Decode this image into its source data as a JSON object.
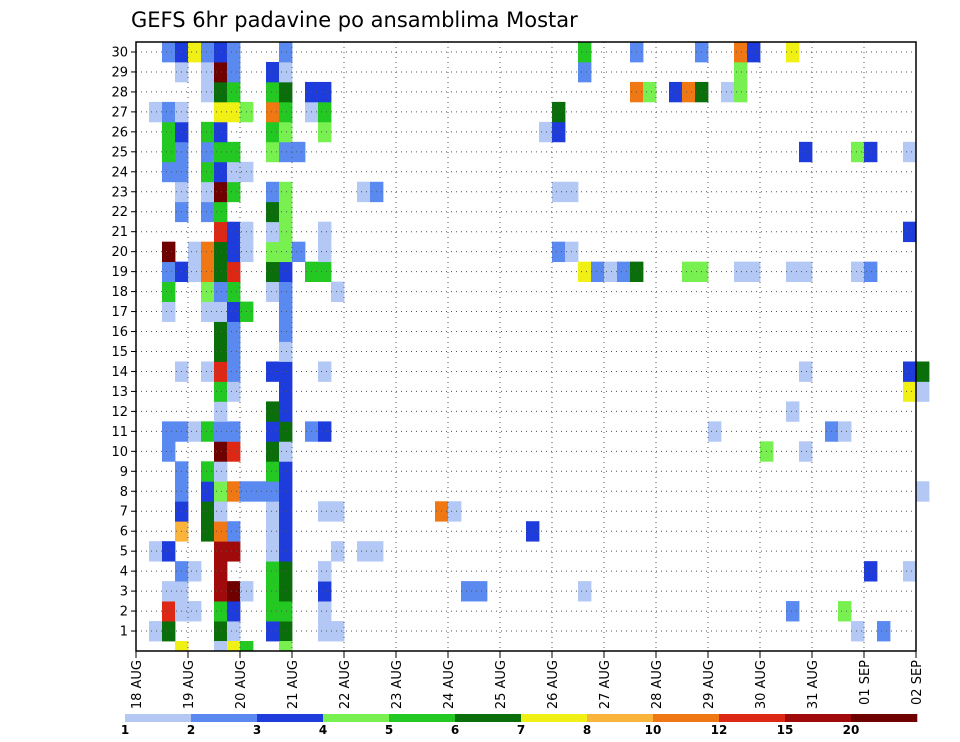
{
  "chart_data": {
    "type": "heatmap",
    "title": "GEFS 6hr padavine po ansamblima Mostar",
    "xlabel": "",
    "ylabel": "",
    "x_tick_labels": [
      "18 AUG",
      "19 AUG",
      "20 AUG",
      "21 AUG",
      "22 AUG",
      "23 AUG",
      "24 AUG",
      "25 AUG",
      "26 AUG",
      "27 AUG",
      "28 AUG",
      "29 AUG",
      "30 AUG",
      "31 AUG",
      "01 SEP",
      "02 SEP"
    ],
    "y_tick_labels": [
      "1",
      "2",
      "3",
      "4",
      "5",
      "6",
      "7",
      "8",
      "9",
      "10",
      "11",
      "12",
      "13",
      "14",
      "15",
      "16",
      "17",
      "18",
      "19",
      "20",
      "21",
      "22",
      "23",
      "24",
      "25",
      "26",
      "27",
      "28",
      "29",
      "30"
    ],
    "ylim": [
      1,
      30
    ],
    "steps_per_day": 4,
    "grid": true,
    "colorbar": {
      "levels": [
        1,
        2,
        3,
        4,
        5,
        6,
        7,
        8,
        10,
        12,
        15,
        20
      ],
      "labels": [
        "1",
        "2",
        "3",
        "4",
        "5",
        "6",
        "7",
        "8",
        "10",
        "12",
        "15",
        "20"
      ],
      "colors": [
        "#b4c8f5",
        "#5a8af0",
        "#1e3cdc",
        "#78f050",
        "#23c823",
        "#0a6e0a",
        "#f0f014",
        "#fab43c",
        "#f07814",
        "#dc2814",
        "#a00a0a",
        "#6e0000"
      ]
    },
    "cells": [
      [
        1,
        1,
        1
      ],
      [
        2,
        1,
        6
      ],
      [
        6,
        1,
        6
      ],
      [
        7,
        1,
        1
      ],
      [
        10,
        1,
        3
      ],
      [
        11,
        1,
        6
      ],
      [
        14,
        1,
        1
      ],
      [
        15,
        1,
        1
      ],
      [
        55,
        1,
        1
      ],
      [
        57,
        1,
        2
      ],
      [
        2,
        2,
        10
      ],
      [
        3,
        2,
        1
      ],
      [
        4,
        2,
        1
      ],
      [
        6,
        2,
        5
      ],
      [
        7,
        2,
        3
      ],
      [
        10,
        2,
        5
      ],
      [
        11,
        2,
        5
      ],
      [
        14,
        2,
        1
      ],
      [
        50,
        2,
        2
      ],
      [
        54,
        2,
        4
      ],
      [
        2,
        3,
        1
      ],
      [
        3,
        3,
        1
      ],
      [
        6,
        3,
        11
      ],
      [
        7,
        3,
        12
      ],
      [
        8,
        3,
        1
      ],
      [
        10,
        3,
        5
      ],
      [
        11,
        3,
        6
      ],
      [
        14,
        3,
        3
      ],
      [
        25,
        3,
        2
      ],
      [
        26,
        3,
        2
      ],
      [
        34,
        3,
        1
      ],
      [
        3,
        4,
        2
      ],
      [
        4,
        4,
        1
      ],
      [
        6,
        4,
        11
      ],
      [
        10,
        4,
        5
      ],
      [
        11,
        4,
        6
      ],
      [
        14,
        4,
        1
      ],
      [
        56,
        4,
        3
      ],
      [
        59,
        4,
        1
      ],
      [
        1,
        5,
        1
      ],
      [
        2,
        5,
        3
      ],
      [
        6,
        5,
        11
      ],
      [
        7,
        5,
        11
      ],
      [
        10,
        5,
        1
      ],
      [
        11,
        5,
        3
      ],
      [
        15,
        5,
        1
      ],
      [
        17,
        5,
        1
      ],
      [
        18,
        5,
        1
      ],
      [
        3,
        6,
        8
      ],
      [
        5,
        6,
        6
      ],
      [
        6,
        6,
        9
      ],
      [
        7,
        6,
        2
      ],
      [
        10,
        6,
        1
      ],
      [
        11,
        6,
        3
      ],
      [
        30,
        6,
        3
      ],
      [
        3,
        7,
        3
      ],
      [
        5,
        7,
        6
      ],
      [
        6,
        7,
        1
      ],
      [
        10,
        7,
        1
      ],
      [
        11,
        7,
        3
      ],
      [
        14,
        7,
        1
      ],
      [
        15,
        7,
        1
      ],
      [
        23,
        7,
        9
      ],
      [
        24,
        7,
        1
      ],
      [
        3,
        8,
        2
      ],
      [
        5,
        8,
        3
      ],
      [
        6,
        8,
        4
      ],
      [
        7,
        8,
        9
      ],
      [
        8,
        8,
        2
      ],
      [
        9,
        8,
        2
      ],
      [
        10,
        8,
        2
      ],
      [
        11,
        8,
        3
      ],
      [
        60,
        8,
        1
      ],
      [
        3,
        9,
        2
      ],
      [
        5,
        9,
        5
      ],
      [
        6,
        9,
        1
      ],
      [
        10,
        9,
        5
      ],
      [
        11,
        9,
        3
      ],
      [
        2,
        10,
        2
      ],
      [
        6,
        10,
        12
      ],
      [
        7,
        10,
        10
      ],
      [
        10,
        10,
        6
      ],
      [
        11,
        10,
        1
      ],
      [
        48,
        10,
        4
      ],
      [
        51,
        10,
        1
      ],
      [
        2,
        11,
        2
      ],
      [
        3,
        11,
        2
      ],
      [
        4,
        11,
        1
      ],
      [
        5,
        11,
        5
      ],
      [
        6,
        11,
        2
      ],
      [
        7,
        11,
        2
      ],
      [
        10,
        11,
        3
      ],
      [
        11,
        11,
        6
      ],
      [
        13,
        11,
        2
      ],
      [
        14,
        11,
        3
      ],
      [
        44,
        11,
        1
      ],
      [
        53,
        11,
        2
      ],
      [
        54,
        11,
        1
      ],
      [
        6,
        12,
        1
      ],
      [
        10,
        12,
        6
      ],
      [
        11,
        12,
        3
      ],
      [
        50,
        12,
        1
      ],
      [
        6,
        13,
        5
      ],
      [
        7,
        13,
        1
      ],
      [
        11,
        13,
        3
      ],
      [
        59,
        13,
        7
      ],
      [
        60,
        13,
        1
      ],
      [
        3,
        14,
        1
      ],
      [
        5,
        14,
        1
      ],
      [
        6,
        14,
        10
      ],
      [
        7,
        14,
        2
      ],
      [
        10,
        14,
        3
      ],
      [
        11,
        14,
        3
      ],
      [
        14,
        14,
        1
      ],
      [
        51,
        14,
        1
      ],
      [
        59,
        14,
        3
      ],
      [
        60,
        14,
        6
      ],
      [
        6,
        15,
        6
      ],
      [
        7,
        15,
        2
      ],
      [
        11,
        15,
        1
      ],
      [
        6,
        16,
        6
      ],
      [
        7,
        16,
        2
      ],
      [
        11,
        16,
        2
      ],
      [
        2,
        17,
        1
      ],
      [
        5,
        17,
        1
      ],
      [
        6,
        17,
        1
      ],
      [
        7,
        17,
        3
      ],
      [
        8,
        17,
        5
      ],
      [
        11,
        17,
        2
      ],
      [
        2,
        18,
        5
      ],
      [
        5,
        18,
        4
      ],
      [
        6,
        18,
        2
      ],
      [
        7,
        18,
        5
      ],
      [
        10,
        18,
        1
      ],
      [
        11,
        18,
        2
      ],
      [
        15,
        18,
        1
      ],
      [
        2,
        19,
        2
      ],
      [
        3,
        19,
        3
      ],
      [
        4,
        19,
        1
      ],
      [
        5,
        19,
        9
      ],
      [
        6,
        19,
        6
      ],
      [
        7,
        19,
        10
      ],
      [
        10,
        19,
        6
      ],
      [
        11,
        19,
        3
      ],
      [
        13,
        19,
        5
      ],
      [
        14,
        19,
        5
      ],
      [
        34,
        19,
        7
      ],
      [
        35,
        19,
        2
      ],
      [
        36,
        19,
        1
      ],
      [
        37,
        19,
        2
      ],
      [
        38,
        19,
        6
      ],
      [
        42,
        19,
        4
      ],
      [
        43,
        19,
        4
      ],
      [
        46,
        19,
        1
      ],
      [
        47,
        19,
        1
      ],
      [
        50,
        19,
        1
      ],
      [
        51,
        19,
        1
      ],
      [
        55,
        19,
        1
      ],
      [
        56,
        19,
        2
      ],
      [
        2,
        20,
        12
      ],
      [
        4,
        20,
        1
      ],
      [
        5,
        20,
        9
      ],
      [
        6,
        20,
        6
      ],
      [
        7,
        20,
        3
      ],
      [
        8,
        20,
        1
      ],
      [
        10,
        20,
        4
      ],
      [
        11,
        20,
        4
      ],
      [
        12,
        20,
        2
      ],
      [
        14,
        20,
        1
      ],
      [
        32,
        20,
        2
      ],
      [
        33,
        20,
        1
      ],
      [
        6,
        21,
        10
      ],
      [
        7,
        21,
        3
      ],
      [
        8,
        21,
        1
      ],
      [
        10,
        21,
        1
      ],
      [
        11,
        21,
        4
      ],
      [
        14,
        21,
        1
      ],
      [
        59,
        21,
        3
      ],
      [
        3,
        22,
        2
      ],
      [
        5,
        22,
        2
      ],
      [
        6,
        22,
        5
      ],
      [
        10,
        22,
        6
      ],
      [
        11,
        22,
        4
      ],
      [
        3,
        23,
        1
      ],
      [
        5,
        23,
        1
      ],
      [
        6,
        23,
        12
      ],
      [
        7,
        23,
        5
      ],
      [
        10,
        23,
        2
      ],
      [
        11,
        23,
        4
      ],
      [
        17,
        23,
        1
      ],
      [
        18,
        23,
        2
      ],
      [
        32,
        23,
        1
      ],
      [
        33,
        23,
        1
      ],
      [
        2,
        24,
        2
      ],
      [
        3,
        24,
        2
      ],
      [
        5,
        24,
        5
      ],
      [
        6,
        24,
        3
      ],
      [
        7,
        24,
        1
      ],
      [
        8,
        24,
        1
      ],
      [
        2,
        25,
        5
      ],
      [
        3,
        25,
        2
      ],
      [
        5,
        25,
        2
      ],
      [
        6,
        25,
        5
      ],
      [
        7,
        25,
        5
      ],
      [
        10,
        25,
        4
      ],
      [
        11,
        25,
        2
      ],
      [
        12,
        25,
        2
      ],
      [
        51,
        25,
        3
      ],
      [
        55,
        25,
        4
      ],
      [
        56,
        25,
        3
      ],
      [
        59,
        25,
        1
      ],
      [
        2,
        26,
        5
      ],
      [
        3,
        26,
        3
      ],
      [
        5,
        26,
        5
      ],
      [
        6,
        26,
        3
      ],
      [
        10,
        26,
        5
      ],
      [
        11,
        26,
        4
      ],
      [
        14,
        26,
        4
      ],
      [
        31,
        26,
        1
      ],
      [
        32,
        26,
        3
      ],
      [
        1,
        27,
        1
      ],
      [
        2,
        27,
        2
      ],
      [
        3,
        27,
        1
      ],
      [
        6,
        27,
        7
      ],
      [
        7,
        27,
        7
      ],
      [
        8,
        27,
        4
      ],
      [
        10,
        27,
        9
      ],
      [
        11,
        27,
        5
      ],
      [
        13,
        27,
        1
      ],
      [
        14,
        27,
        5
      ],
      [
        32,
        27,
        6
      ],
      [
        5,
        28,
        1
      ],
      [
        6,
        28,
        6
      ],
      [
        7,
        28,
        5
      ],
      [
        10,
        28,
        5
      ],
      [
        11,
        28,
        6
      ],
      [
        13,
        28,
        3
      ],
      [
        14,
        28,
        3
      ],
      [
        38,
        28,
        9
      ],
      [
        39,
        28,
        4
      ],
      [
        41,
        28,
        3
      ],
      [
        42,
        28,
        9
      ],
      [
        43,
        28,
        6
      ],
      [
        45,
        28,
        1
      ],
      [
        46,
        28,
        4
      ],
      [
        3,
        29,
        1
      ],
      [
        5,
        29,
        1
      ],
      [
        6,
        29,
        12
      ],
      [
        7,
        29,
        2
      ],
      [
        10,
        29,
        3
      ],
      [
        11,
        29,
        1
      ],
      [
        34,
        29,
        2
      ],
      [
        46,
        29,
        4
      ],
      [
        2,
        30,
        2
      ],
      [
        3,
        30,
        3
      ],
      [
        4,
        30,
        7
      ],
      [
        5,
        30,
        2
      ],
      [
        6,
        30,
        3
      ],
      [
        7,
        30,
        2
      ],
      [
        11,
        30,
        2
      ],
      [
        34,
        30,
        5
      ],
      [
        38,
        30,
        2
      ],
      [
        43,
        30,
        2
      ],
      [
        46,
        30,
        9
      ],
      [
        47,
        30,
        3
      ],
      [
        50,
        30,
        7
      ]
    ],
    "bottom_strip": [
      [
        3,
        7
      ],
      [
        6,
        1
      ],
      [
        7,
        7
      ],
      [
        8,
        5
      ],
      [
        11,
        4
      ]
    ]
  }
}
